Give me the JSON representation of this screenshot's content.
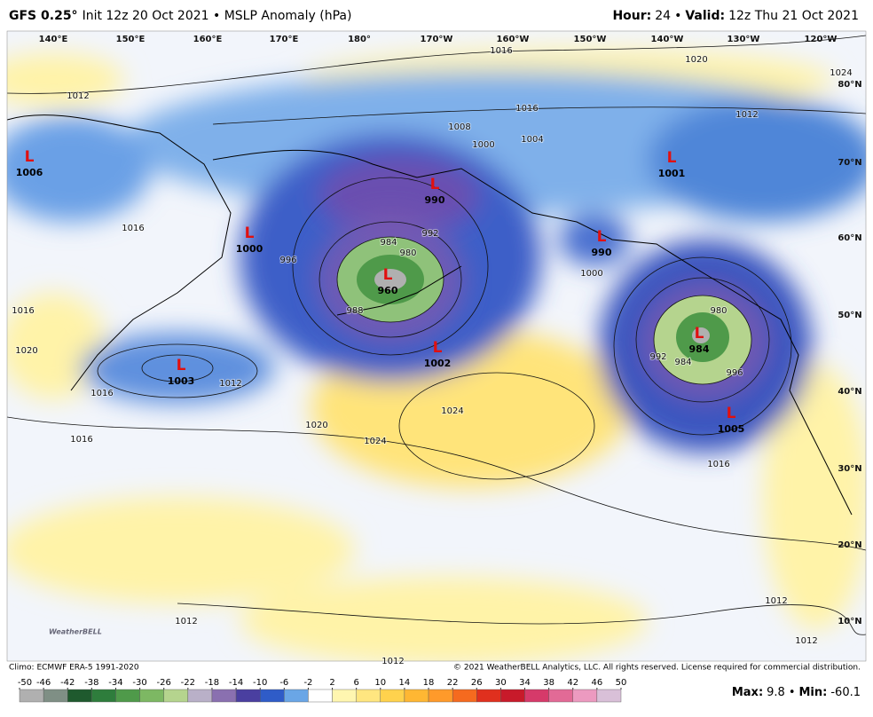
{
  "header": {
    "model": "GFS 0.25°",
    "subtitle": "Init 12z 20 Oct 2021 • MSLP Anomaly (hPa)",
    "hour_label": "Hour:",
    "hour": "24",
    "separator": "•",
    "valid_label": "Valid:",
    "valid": "12z Thu 21 Oct 2021"
  },
  "longitudes": [
    "140°E",
    "150°E",
    "160°E",
    "170°E",
    "180°",
    "170°W",
    "160°W",
    "150°W",
    "140°W",
    "130°W",
    "120°W"
  ],
  "latitudes": [
    "80°N",
    "70°N",
    "60°N",
    "50°N",
    "40°N",
    "30°N",
    "20°N",
    "10°N"
  ],
  "lows": [
    {
      "label": "L",
      "value": "1006"
    },
    {
      "label": "L",
      "value": "990"
    },
    {
      "label": "L",
      "value": "1000"
    },
    {
      "label": "L",
      "value": "960"
    },
    {
      "label": "L",
      "value": "1001"
    },
    {
      "label": "L",
      "value": "990"
    },
    {
      "label": "L",
      "value": "1003"
    },
    {
      "label": "L",
      "value": "1002"
    },
    {
      "label": "L",
      "value": "984"
    },
    {
      "label": "L",
      "value": "1005"
    }
  ],
  "isobar_labels": [
    "1016",
    "1020",
    "1012",
    "1016",
    "1012",
    "1008",
    "1004",
    "1000",
    "1024",
    "1016",
    "996",
    "992",
    "984",
    "980",
    "1000",
    "980",
    "992",
    "996",
    "1012",
    "1016",
    "1020",
    "1024",
    "1024",
    "1016",
    "1016",
    "1012",
    "1012",
    "1012",
    "1012",
    "1016",
    "1020",
    "988",
    "984"
  ],
  "footer": {
    "climo": "Climo: ECMWF ERA-5 1991-2020",
    "copyright": "© 2021 WeatherBELL Analytics, LLC. All rights reserved. License required for commercial distribution.",
    "logo": "WeatherBELL"
  },
  "colorbar": {
    "ticks": [
      -50,
      -46,
      -42,
      -38,
      -34,
      -30,
      -26,
      -22,
      -18,
      -14,
      -10,
      -6,
      -2,
      2,
      6,
      10,
      14,
      18,
      22,
      26,
      30,
      34,
      38,
      42,
      46,
      50
    ],
    "colors": [
      "#b0b0b0",
      "#7f8f85",
      "#1f5a2e",
      "#2e7d3c",
      "#4f9a4a",
      "#7db863",
      "#b5d48e",
      "#b9b0c8",
      "#8a70b0",
      "#4a3fa0",
      "#2f5cc8",
      "#6aa6e6",
      "#ffffff",
      "#fff6b0",
      "#ffe680",
      "#ffd24d",
      "#ffb733",
      "#ff9a2a",
      "#f56a1f",
      "#e0301e",
      "#c81a2a",
      "#d63a6a",
      "#e26a96",
      "#ec9ac0",
      "#d9c0d8"
    ]
  },
  "stats": {
    "max_label": "Max:",
    "max": 9.8,
    "min_label": "Min:",
    "min": -60.1
  }
}
